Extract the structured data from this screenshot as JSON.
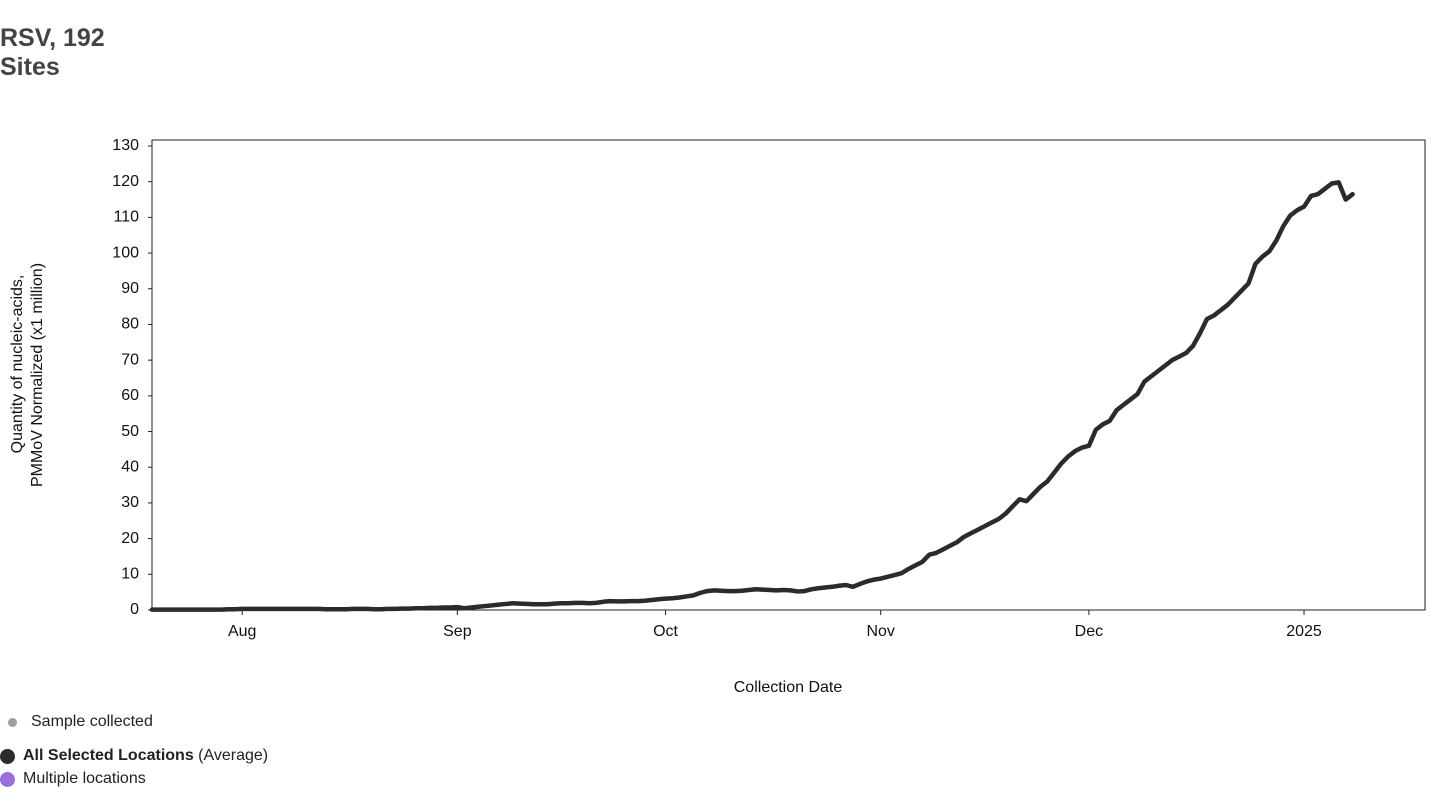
{
  "chart_data": {
    "type": "line",
    "title": "RSV, 192 Sites",
    "ylabel": [
      "Quantity of nucleic-acids,",
      "PMMoV Normalized (x1 million)"
    ],
    "xlabel": "Collection Date",
    "categories": [
      null,
      null,
      null,
      null,
      null,
      null,
      null,
      null,
      null,
      null,
      null,
      null,
      null,
      "Aug",
      null,
      null,
      null,
      null,
      null,
      null,
      null,
      null,
      null,
      null,
      null,
      null,
      null,
      null,
      null,
      null,
      null,
      null,
      null,
      null,
      null,
      null,
      null,
      null,
      null,
      null,
      null,
      null,
      null,
      null,
      "Sep",
      null,
      null,
      null,
      null,
      null,
      null,
      null,
      null,
      null,
      null,
      null,
      null,
      null,
      null,
      null,
      null,
      null,
      null,
      null,
      null,
      null,
      null,
      null,
      null,
      null,
      null,
      null,
      null,
      null,
      "Oct",
      null,
      null,
      null,
      null,
      null,
      null,
      null,
      null,
      null,
      null,
      null,
      null,
      null,
      null,
      null,
      null,
      null,
      null,
      null,
      null,
      null,
      null,
      null,
      null,
      null,
      null,
      null,
      null,
      null,
      null,
      "Nov",
      null,
      null,
      null,
      null,
      null,
      null,
      null,
      null,
      null,
      null,
      null,
      null,
      null,
      null,
      null,
      null,
      null,
      null,
      null,
      null,
      null,
      null,
      null,
      null,
      null,
      null,
      null,
      null,
      null,
      "Dec",
      null,
      null,
      null,
      null,
      null,
      null,
      null,
      null,
      null,
      null,
      null,
      null,
      null,
      null,
      null,
      null,
      null,
      null,
      null,
      null,
      null,
      null,
      null,
      null,
      null,
      null,
      null,
      null,
      null,
      null,
      "2025",
      null,
      null,
      null,
      null,
      null,
      null,
      null
    ],
    "series": [
      {
        "name": "All Selected Locations",
        "note": "(Average)",
        "color": "#2b2b2b",
        "values": [
          0.1,
          0.1,
          0.1,
          0.1,
          0.1,
          0.1,
          0.1,
          0.1,
          0.1,
          0.1,
          0.1,
          0.2,
          0.2,
          0.3,
          0.3,
          0.3,
          0.3,
          0.3,
          0.3,
          0.3,
          0.3,
          0.3,
          0.3,
          0.3,
          0.3,
          0.2,
          0.2,
          0.2,
          0.2,
          0.3,
          0.3,
          0.3,
          0.2,
          0.2,
          0.3,
          0.3,
          0.4,
          0.4,
          0.5,
          0.5,
          0.6,
          0.6,
          0.7,
          0.7,
          0.8,
          0.5,
          0.7,
          0.9,
          1.1,
          1.3,
          1.5,
          1.7,
          1.9,
          1.8,
          1.7,
          1.6,
          1.6,
          1.6,
          1.8,
          1.9,
          1.9,
          2.0,
          2.0,
          1.9,
          2.0,
          2.3,
          2.5,
          2.4,
          2.4,
          2.5,
          2.5,
          2.6,
          2.8,
          3.0,
          3.2,
          3.3,
          3.5,
          3.8,
          4.1,
          4.8,
          5.3,
          5.5,
          5.4,
          5.3,
          5.3,
          5.4,
          5.6,
          5.8,
          5.7,
          5.6,
          5.5,
          5.6,
          5.5,
          5.2,
          5.3,
          5.8,
          6.1,
          6.3,
          6.5,
          6.8,
          7.0,
          6.5,
          7.3,
          8.0,
          8.5,
          8.8,
          9.3,
          9.8,
          10.3,
          11.5,
          12.5,
          13.5,
          15.5,
          16,
          17,
          18,
          19,
          20.5,
          21.5,
          22.5,
          23.5,
          24.5,
          25.5,
          27,
          29,
          31,
          30.5,
          32.5,
          34.5,
          36,
          38.5,
          41,
          43,
          44.5,
          45.5,
          46,
          50.5,
          52,
          53,
          56,
          57.5,
          59,
          60.5,
          64,
          65.5,
          67,
          68.5,
          70,
          71,
          72,
          74,
          77.5,
          81.5,
          82.5,
          84,
          85.5,
          87.5,
          89.5,
          91.5,
          97,
          99,
          100.5,
          103.5,
          107.5,
          110.5,
          112,
          113,
          116,
          116.5,
          118,
          119.5,
          119.8,
          115,
          116.5
        ]
      }
    ],
    "legend": [
      {
        "name": "Sample collected",
        "color": "#9aa0a6"
      },
      {
        "name": "Multiple locations",
        "color": "#9b6ee0"
      }
    ],
    "ylim": [
      0,
      130
    ],
    "yticks": [
      0,
      10,
      20,
      30,
      40,
      50,
      60,
      70,
      80,
      90,
      100,
      110,
      120,
      130
    ],
    "grid": false
  }
}
